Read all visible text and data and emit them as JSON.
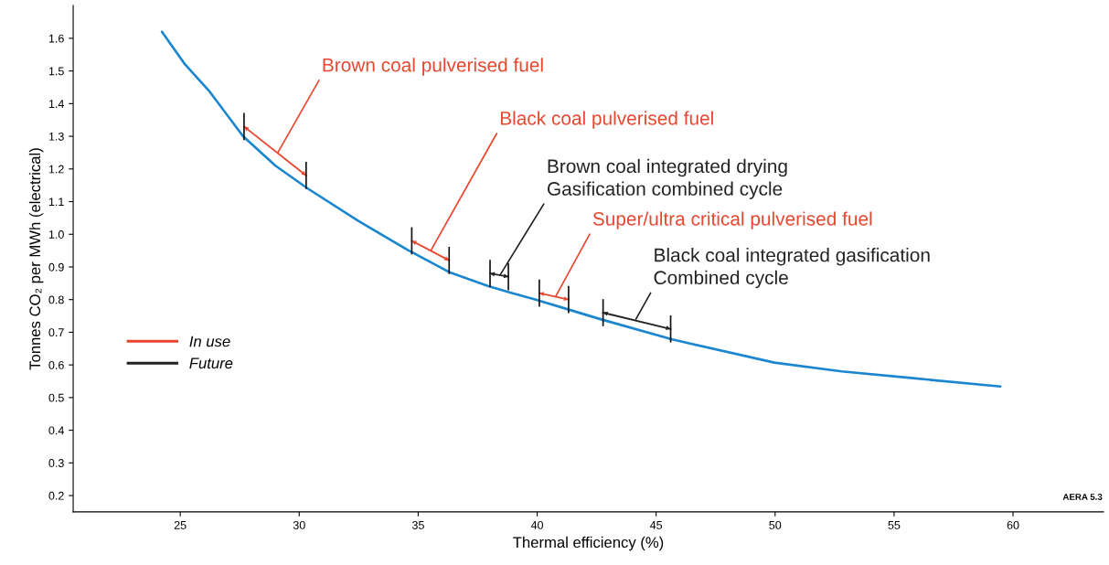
{
  "chart_data": {
    "type": "line",
    "xlabel": "Thermal efficiency (%)",
    "ylabel": "Tonnes CO₂ per MWh (electrical)",
    "xlim": [
      20.5,
      63.8
    ],
    "ylim": [
      0.15,
      1.7
    ],
    "xticks": [
      25,
      30,
      35,
      40,
      45,
      50,
      55,
      60
    ],
    "yticks": [
      0.2,
      0.3,
      0.4,
      0.5,
      0.6,
      0.7,
      0.8,
      0.9,
      {
        "value": 1.0,
        "label": "1.0"
      },
      1.1,
      1.2,
      1.3,
      1.4,
      1.5,
      1.6
    ],
    "grid": false,
    "legend": "bottom left",
    "line_style": "solid",
    "series": [
      {
        "color": "#1b86d0",
        "x": [
          24.23,
          25.2,
          26.2,
          27.64,
          29.0,
          30.36,
          32.5,
          34.54,
          36.34,
          37.95,
          38.9,
          39.94,
          41.39,
          42.66,
          45.68,
          49.97,
          52.8,
          55.7,
          59.47
        ],
        "values": [
          1.62,
          1.52,
          1.44,
          1.3,
          1.21,
          1.14,
          1.04,
          0.953,
          0.883,
          0.841,
          0.821,
          0.8,
          0.768,
          0.74,
          0.678,
          0.607,
          0.58,
          0.56,
          0.534
        ]
      },
      {
        "name": "In use",
        "color": "#e8472f",
        "marker": "triangle",
        "x": [
          27.68,
          30.29,
          null,
          34.73,
          36.3,
          null,
          40.09,
          41.32
        ],
        "values": [
          1.33,
          1.18,
          null,
          0.98,
          0.92,
          null,
          0.82,
          0.8
        ]
      },
      {
        "name": "Future",
        "color": "#222222",
        "marker": "triangle",
        "x": [
          38.02,
          38.79,
          null,
          42.77,
          45.61
        ],
        "values": [
          0.88,
          0.87,
          null,
          0.76,
          0.71
        ]
      }
    ],
    "annotations": [
      {
        "text": "Brown coal pulverised fuel",
        "x": 29.1,
        "y": 1.25
      },
      {
        "text": "Black coal pulverised fuel",
        "x": 35.53,
        "y": 0.95
      },
      {
        "text": "Brown coal integrated drying\nGasification combined cycle",
        "x": 38.44,
        "y": 0.875
      },
      {
        "text": "Super/ultra critical pulverised fuel",
        "x": 40.78,
        "y": 0.81
      },
      {
        "text": "Black coal integrated gasification\nCombined cycle",
        "x": 44.15,
        "y": 0.74
      },
      "AERA 5.3"
    ]
  }
}
